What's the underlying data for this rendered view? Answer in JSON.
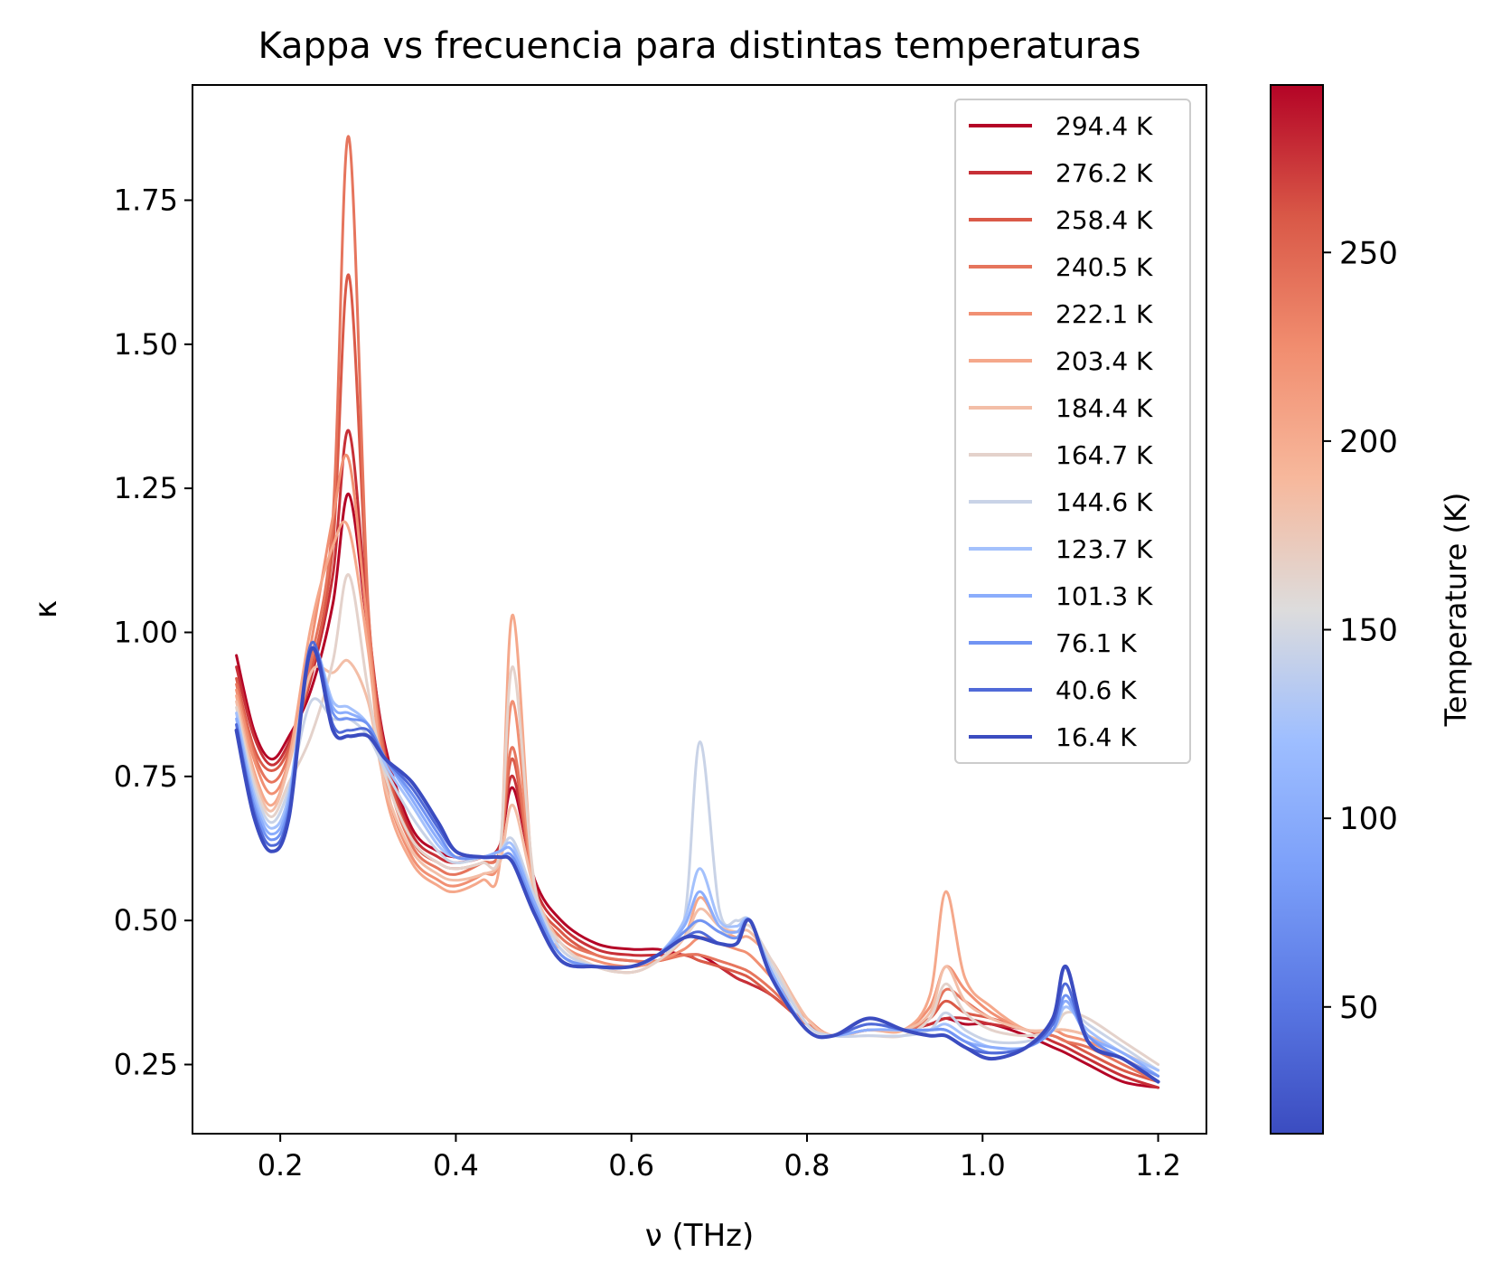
{
  "chart_data": {
    "type": "line",
    "title": "Kappa vs frecuencia para distintas temperaturas",
    "xlabel": "ν (THz)",
    "ylabel": "κ",
    "xlim": [
      0.1,
      1.255
    ],
    "ylim": [
      0.13,
      1.95
    ],
    "xticks": [
      0.2,
      0.4,
      0.6,
      0.8,
      1.0,
      1.2
    ],
    "yticks": [
      0.25,
      0.5,
      0.75,
      1.0,
      1.25,
      1.5,
      1.75
    ],
    "xtick_labels": [
      "0.2",
      "0.4",
      "0.6",
      "0.8",
      "1.0",
      "1.2"
    ],
    "ytick_labels": [
      "0.25",
      "0.50",
      "0.75",
      "1.00",
      "1.25",
      "1.50",
      "1.75"
    ],
    "grid": false,
    "legend_position": "upper-right",
    "x": [
      0.15,
      0.17,
      0.19,
      0.21,
      0.235,
      0.26,
      0.278,
      0.3,
      0.32,
      0.35,
      0.38,
      0.4,
      0.43,
      0.45,
      0.465,
      0.49,
      0.52,
      0.56,
      0.6,
      0.63,
      0.66,
      0.678,
      0.7,
      0.72,
      0.735,
      0.76,
      0.8,
      0.83,
      0.87,
      0.91,
      0.94,
      0.958,
      0.98,
      1.01,
      1.05,
      1.08,
      1.095,
      1.12,
      1.16,
      1.2
    ],
    "series": [
      {
        "name": "294.4 K",
        "values": [
          0.96,
          0.83,
          0.78,
          0.82,
          0.9,
          1.05,
          1.24,
          1.0,
          0.8,
          0.66,
          0.62,
          0.61,
          0.61,
          0.63,
          0.73,
          0.57,
          0.5,
          0.46,
          0.45,
          0.45,
          0.44,
          0.44,
          0.42,
          0.4,
          0.39,
          0.37,
          0.32,
          0.3,
          0.31,
          0.31,
          0.32,
          0.33,
          0.32,
          0.32,
          0.3,
          0.28,
          0.27,
          0.25,
          0.22,
          0.21
        ]
      },
      {
        "name": "276.2 K",
        "values": [
          0.94,
          0.82,
          0.77,
          0.81,
          0.92,
          1.1,
          1.35,
          1.02,
          0.79,
          0.65,
          0.61,
          0.6,
          0.61,
          0.63,
          0.75,
          0.56,
          0.49,
          0.45,
          0.44,
          0.44,
          0.44,
          0.43,
          0.42,
          0.4,
          0.39,
          0.37,
          0.32,
          0.3,
          0.31,
          0.31,
          0.32,
          0.33,
          0.33,
          0.32,
          0.31,
          0.29,
          0.28,
          0.26,
          0.23,
          0.21
        ]
      },
      {
        "name": "258.4 K",
        "values": [
          0.92,
          0.8,
          0.76,
          0.8,
          0.93,
          1.15,
          1.62,
          1.04,
          0.78,
          0.64,
          0.6,
          0.59,
          0.6,
          0.62,
          0.78,
          0.55,
          0.48,
          0.44,
          0.43,
          0.43,
          0.44,
          0.43,
          0.42,
          0.41,
          0.4,
          0.37,
          0.32,
          0.3,
          0.31,
          0.31,
          0.33,
          0.36,
          0.34,
          0.33,
          0.31,
          0.3,
          0.29,
          0.27,
          0.24,
          0.22
        ]
      },
      {
        "name": "240.5 K",
        "values": [
          0.91,
          0.79,
          0.74,
          0.79,
          0.95,
          1.2,
          1.86,
          1.05,
          0.77,
          0.63,
          0.59,
          0.58,
          0.6,
          0.62,
          0.8,
          0.55,
          0.47,
          0.44,
          0.43,
          0.43,
          0.44,
          0.44,
          0.43,
          0.42,
          0.41,
          0.38,
          0.32,
          0.3,
          0.31,
          0.31,
          0.33,
          0.38,
          0.36,
          0.33,
          0.31,
          0.3,
          0.29,
          0.28,
          0.25,
          0.22
        ]
      },
      {
        "name": "222.1 K",
        "values": [
          0.9,
          0.78,
          0.72,
          0.78,
          0.98,
          1.2,
          1.3,
          1.0,
          0.74,
          0.61,
          0.57,
          0.56,
          0.58,
          0.61,
          0.88,
          0.54,
          0.46,
          0.43,
          0.42,
          0.43,
          0.45,
          0.47,
          0.46,
          0.45,
          0.44,
          0.4,
          0.33,
          0.3,
          0.31,
          0.31,
          0.35,
          0.42,
          0.38,
          0.34,
          0.31,
          0.31,
          0.3,
          0.29,
          0.26,
          0.23
        ]
      },
      {
        "name": "203.4 K",
        "values": [
          0.89,
          0.76,
          0.7,
          0.78,
          1.01,
          1.15,
          1.18,
          0.97,
          0.72,
          0.6,
          0.56,
          0.55,
          0.57,
          0.6,
          1.03,
          0.54,
          0.45,
          0.42,
          0.41,
          0.43,
          0.47,
          0.54,
          0.49,
          0.47,
          0.47,
          0.43,
          0.33,
          0.3,
          0.31,
          0.31,
          0.37,
          0.55,
          0.4,
          0.35,
          0.31,
          0.31,
          0.31,
          0.3,
          0.27,
          0.24
        ]
      },
      {
        "name": "184.4 K",
        "values": [
          0.88,
          0.75,
          0.69,
          0.77,
          0.93,
          0.93,
          0.95,
          0.88,
          0.73,
          0.62,
          0.58,
          0.57,
          0.58,
          0.6,
          0.7,
          0.55,
          0.46,
          0.42,
          0.41,
          0.43,
          0.47,
          0.52,
          0.49,
          0.48,
          0.48,
          0.43,
          0.33,
          0.3,
          0.31,
          0.31,
          0.34,
          0.42,
          0.36,
          0.33,
          0.31,
          0.31,
          0.31,
          0.3,
          0.27,
          0.24
        ]
      },
      {
        "name": "164.7 K",
        "values": [
          0.87,
          0.74,
          0.68,
          0.74,
          0.82,
          0.95,
          1.1,
          0.9,
          0.75,
          0.64,
          0.6,
          0.59,
          0.6,
          0.62,
          0.94,
          0.56,
          0.46,
          0.42,
          0.41,
          0.43,
          0.47,
          0.5,
          0.48,
          0.48,
          0.49,
          0.43,
          0.32,
          0.3,
          0.3,
          0.3,
          0.33,
          0.39,
          0.34,
          0.31,
          0.3,
          0.31,
          0.34,
          0.33,
          0.29,
          0.25
        ]
      },
      {
        "name": "144.6 K",
        "values": [
          0.86,
          0.73,
          0.67,
          0.73,
          0.88,
          0.85,
          0.85,
          0.82,
          0.76,
          0.68,
          0.62,
          0.6,
          0.61,
          0.62,
          0.64,
          0.54,
          0.45,
          0.42,
          0.42,
          0.44,
          0.5,
          0.81,
          0.52,
          0.5,
          0.5,
          0.42,
          0.32,
          0.3,
          0.3,
          0.3,
          0.31,
          0.34,
          0.31,
          0.29,
          0.29,
          0.31,
          0.35,
          0.32,
          0.28,
          0.24
        ]
      },
      {
        "name": "123.7 K",
        "values": [
          0.86,
          0.72,
          0.66,
          0.72,
          0.97,
          0.88,
          0.87,
          0.84,
          0.77,
          0.7,
          0.63,
          0.61,
          0.61,
          0.62,
          0.63,
          0.53,
          0.44,
          0.42,
          0.42,
          0.44,
          0.5,
          0.59,
          0.5,
          0.49,
          0.5,
          0.41,
          0.31,
          0.3,
          0.31,
          0.31,
          0.31,
          0.32,
          0.3,
          0.28,
          0.28,
          0.31,
          0.35,
          0.31,
          0.27,
          0.24
        ]
      },
      {
        "name": "101.3 K",
        "values": [
          0.85,
          0.71,
          0.65,
          0.71,
          0.97,
          0.87,
          0.86,
          0.84,
          0.78,
          0.71,
          0.64,
          0.61,
          0.61,
          0.62,
          0.62,
          0.53,
          0.44,
          0.42,
          0.42,
          0.44,
          0.49,
          0.55,
          0.49,
          0.48,
          0.5,
          0.41,
          0.31,
          0.3,
          0.31,
          0.31,
          0.31,
          0.31,
          0.29,
          0.28,
          0.28,
          0.31,
          0.36,
          0.3,
          0.27,
          0.23
        ]
      },
      {
        "name": "76.1 K",
        "values": [
          0.84,
          0.7,
          0.64,
          0.7,
          0.97,
          0.86,
          0.85,
          0.84,
          0.78,
          0.72,
          0.65,
          0.61,
          0.61,
          0.61,
          0.61,
          0.52,
          0.44,
          0.42,
          0.42,
          0.44,
          0.48,
          0.5,
          0.48,
          0.47,
          0.5,
          0.4,
          0.31,
          0.3,
          0.32,
          0.31,
          0.31,
          0.31,
          0.29,
          0.27,
          0.28,
          0.31,
          0.37,
          0.3,
          0.26,
          0.23
        ]
      },
      {
        "name": "40.6 K",
        "values": [
          0.84,
          0.69,
          0.63,
          0.69,
          0.98,
          0.84,
          0.83,
          0.83,
          0.78,
          0.73,
          0.66,
          0.62,
          0.61,
          0.61,
          0.6,
          0.51,
          0.43,
          0.42,
          0.42,
          0.44,
          0.47,
          0.48,
          0.46,
          0.46,
          0.5,
          0.4,
          0.31,
          0.3,
          0.32,
          0.31,
          0.3,
          0.3,
          0.28,
          0.27,
          0.28,
          0.32,
          0.39,
          0.29,
          0.26,
          0.22
        ]
      },
      {
        "name": "16.4 K",
        "values": [
          0.83,
          0.68,
          0.62,
          0.68,
          0.97,
          0.83,
          0.82,
          0.82,
          0.78,
          0.74,
          0.67,
          0.62,
          0.61,
          0.61,
          0.6,
          0.51,
          0.43,
          0.42,
          0.42,
          0.44,
          0.47,
          0.47,
          0.46,
          0.46,
          0.5,
          0.4,
          0.31,
          0.3,
          0.33,
          0.31,
          0.3,
          0.3,
          0.28,
          0.26,
          0.28,
          0.33,
          0.42,
          0.29,
          0.26,
          0.22
        ]
      }
    ],
    "colorbar": {
      "label": "Temperature (K)",
      "range": [
        16.4,
        294.4
      ],
      "ticks": [
        50,
        100,
        150,
        200,
        250
      ],
      "tick_labels": [
        "50",
        "100",
        "150",
        "200",
        "250"
      ],
      "colormap": "coolwarm"
    }
  }
}
